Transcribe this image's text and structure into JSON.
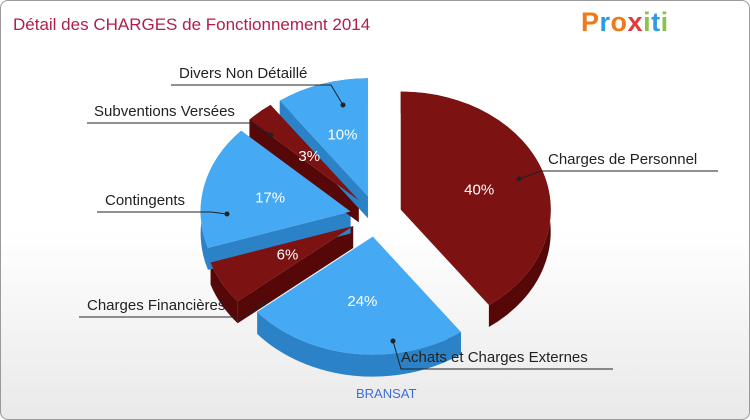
{
  "header": {
    "title": "Détail des CHARGES de Fonctionnement 2014",
    "logo": "Proxiti"
  },
  "footer": {
    "commune": "BRANSAT"
  },
  "colors": {
    "blue": "#45a9f3",
    "blue_side": "#2b82c6",
    "dark_red": "#7c1212",
    "dark_red_side": "#560808"
  },
  "chart_data": {
    "type": "pie",
    "title": "Détail des CHARGES de Fonctionnement 2014",
    "unit": "%",
    "slices": [
      {
        "label": "Charges de Personnel",
        "value": 40,
        "value_label": "40%",
        "color": "#7c1212"
      },
      {
        "label": "Achats et Charges Externes",
        "value": 24,
        "value_label": "24%",
        "color": "#45a9f3"
      },
      {
        "label": "Charges Financières",
        "value": 6,
        "value_label": "6%",
        "color": "#7c1212"
      },
      {
        "label": "Contingents",
        "value": 17,
        "value_label": "17%",
        "color": "#45a9f3"
      },
      {
        "label": "Subventions Versées",
        "value": 3,
        "value_label": "3%",
        "color": "#7c1212"
      },
      {
        "label": "Divers Non Détaillé",
        "value": 10,
        "value_label": "10%",
        "color": "#45a9f3"
      }
    ]
  }
}
